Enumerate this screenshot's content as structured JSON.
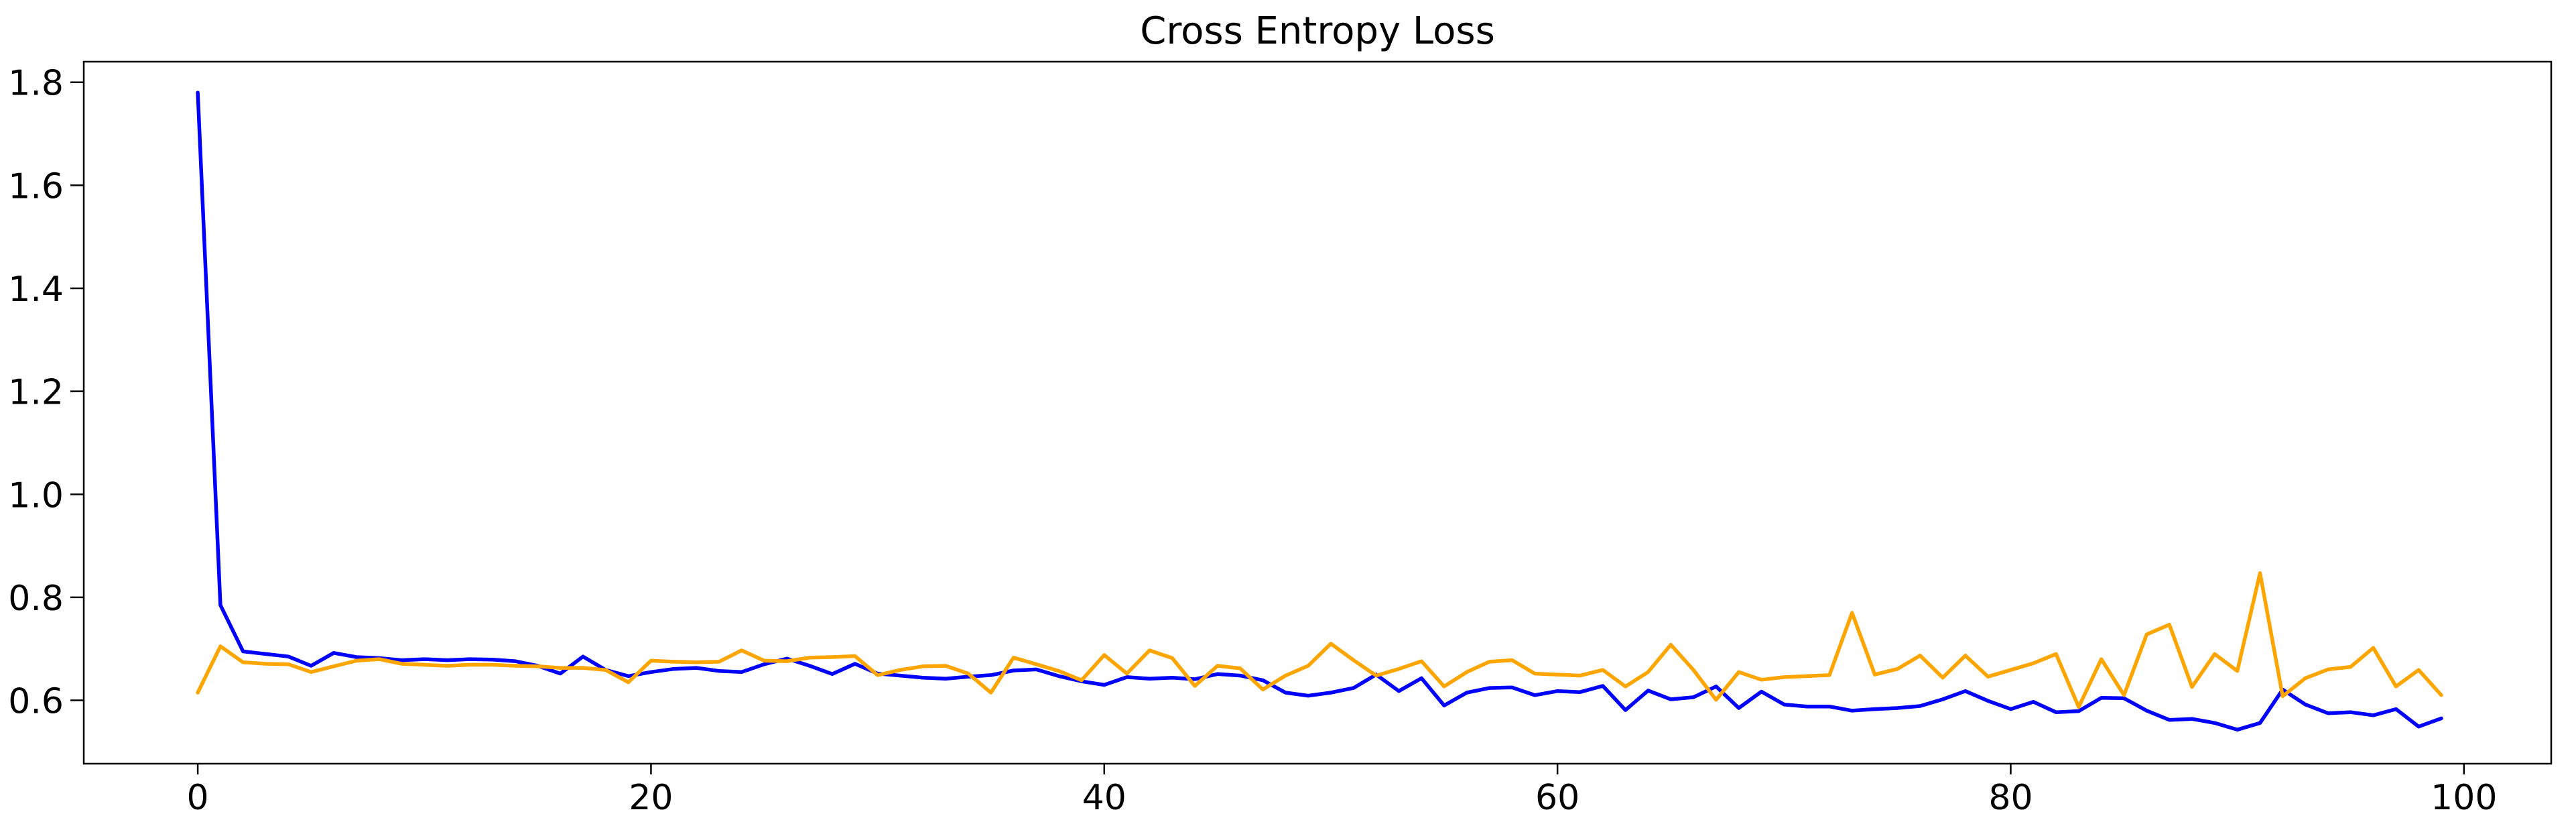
{
  "chart_data": {
    "type": "line",
    "title": "Cross Entropy Loss",
    "xlabel": "",
    "ylabel": "",
    "grid": false,
    "legend": "none",
    "xlim": [
      -5.03,
      103.85
    ],
    "ylim": [
      0.477,
      1.84
    ],
    "xticks": [
      0,
      20,
      40,
      60,
      80,
      100
    ],
    "xtick_labels": [
      "0",
      "20",
      "40",
      "60",
      "80",
      "100"
    ],
    "yticks": [
      0.6,
      0.8,
      1.0,
      1.2,
      1.4,
      1.6,
      1.8
    ],
    "ytick_labels": [
      "0.6",
      "0.8",
      "1.0",
      "1.2",
      "1.4",
      "1.6",
      "1.8"
    ],
    "x": [
      0,
      1,
      2,
      3,
      4,
      5,
      6,
      7,
      8,
      9,
      10,
      11,
      12,
      13,
      14,
      15,
      16,
      17,
      18,
      19,
      20,
      21,
      22,
      23,
      24,
      25,
      26,
      27,
      28,
      29,
      30,
      31,
      32,
      33,
      34,
      35,
      36,
      37,
      38,
      39,
      40,
      41,
      42,
      43,
      44,
      45,
      46,
      47,
      48,
      49,
      50,
      51,
      52,
      53,
      54,
      55,
      56,
      57,
      58,
      59,
      60,
      61,
      62,
      63,
      64,
      65,
      66,
      67,
      68,
      69,
      70,
      71,
      72,
      73,
      74,
      75,
      76,
      77,
      78,
      79,
      80,
      81,
      82,
      83,
      84,
      85,
      86,
      87,
      88,
      89,
      90,
      91,
      92,
      93,
      94,
      95,
      96,
      97,
      98,
      99
    ],
    "series": [
      {
        "name": "blue-line",
        "color": "#0000FF",
        "values": [
          1.78,
          0.785,
          0.695,
          0.69,
          0.685,
          0.667,
          0.692,
          0.684,
          0.682,
          0.678,
          0.68,
          0.678,
          0.68,
          0.679,
          0.676,
          0.667,
          0.652,
          0.685,
          0.659,
          0.647,
          0.655,
          0.661,
          0.663,
          0.657,
          0.655,
          0.67,
          0.681,
          0.667,
          0.651,
          0.671,
          0.652,
          0.648,
          0.644,
          0.642,
          0.646,
          0.649,
          0.658,
          0.66,
          0.647,
          0.637,
          0.63,
          0.645,
          0.642,
          0.644,
          0.641,
          0.651,
          0.648,
          0.639,
          0.615,
          0.609,
          0.615,
          0.624,
          0.65,
          0.618,
          0.643,
          0.59,
          0.615,
          0.624,
          0.625,
          0.61,
          0.618,
          0.616,
          0.628,
          0.581,
          0.619,
          0.602,
          0.606,
          0.627,
          0.585,
          0.617,
          0.592,
          0.588,
          0.588,
          0.58,
          0.583,
          0.585,
          0.589,
          0.602,
          0.618,
          0.599,
          0.583,
          0.597,
          0.577,
          0.579,
          0.605,
          0.604,
          0.58,
          0.562,
          0.564,
          0.556,
          0.543,
          0.556,
          0.621,
          0.592,
          0.575,
          0.577,
          0.571,
          0.583,
          0.549,
          0.565
        ]
      },
      {
        "name": "orange-line",
        "color": "#FFA500",
        "values": [
          0.615,
          0.705,
          0.674,
          0.671,
          0.67,
          0.655,
          0.666,
          0.677,
          0.68,
          0.671,
          0.669,
          0.667,
          0.669,
          0.669,
          0.667,
          0.666,
          0.663,
          0.663,
          0.659,
          0.635,
          0.677,
          0.675,
          0.674,
          0.675,
          0.697,
          0.677,
          0.676,
          0.683,
          0.684,
          0.686,
          0.649,
          0.659,
          0.666,
          0.667,
          0.652,
          0.615,
          0.683,
          0.67,
          0.657,
          0.639,
          0.688,
          0.652,
          0.697,
          0.682,
          0.628,
          0.667,
          0.662,
          0.621,
          0.648,
          0.667,
          0.71,
          0.678,
          0.648,
          0.661,
          0.676,
          0.627,
          0.655,
          0.675,
          0.678,
          0.652,
          0.65,
          0.648,
          0.659,
          0.627,
          0.655,
          0.708,
          0.659,
          0.601,
          0.655,
          0.64,
          0.645,
          0.647,
          0.649,
          0.77,
          0.65,
          0.661,
          0.687,
          0.644,
          0.687,
          0.646,
          0.659,
          0.672,
          0.69,
          0.587,
          0.68,
          0.61,
          0.728,
          0.747,
          0.626,
          0.69,
          0.657,
          0.847,
          0.608,
          0.643,
          0.66,
          0.665,
          0.702,
          0.627,
          0.659,
          0.61
        ]
      }
    ]
  },
  "style": {
    "background": "#FFFFFF",
    "axis_color": "#000000",
    "text_color": "#000000",
    "line_width": 5.5,
    "spine_width": 2.5
  }
}
